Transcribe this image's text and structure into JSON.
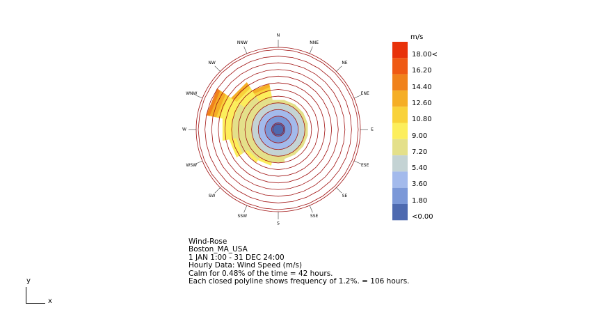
{
  "chart_data": {
    "type": "polar-bar",
    "title": "Wind-Rose",
    "location": "Boston_MA_USA",
    "period": "1 JAN 1:00 - 31 DEC 24:00",
    "data_label": "Hourly Data: Wind Speed (m/s)",
    "calm_text": "Calm for 0.48% of the time = 42 hours.",
    "frequency_text": "Each closed polyline shows frequency of 1.2%. = 106 hours.",
    "directions": [
      "N",
      "NNE",
      "NE",
      "ENE",
      "E",
      "ESE",
      "SE",
      "SSE",
      "S",
      "SSW",
      "SW",
      "WSW",
      "W",
      "WNW",
      "NW",
      "NNW"
    ],
    "rings": 12,
    "legend": {
      "unit": "m/s",
      "labels": [
        "18.00<",
        "16.20",
        "14.40",
        "12.60",
        "10.80",
        "9.00",
        "7.20",
        "5.40",
        "3.60",
        "1.80",
        "<0.00"
      ],
      "colors": [
        "#e8320a",
        "#ef5a14",
        "#f0821c",
        "#f5ae26",
        "#f9d23a",
        "#fcee5c",
        "#e4e08a",
        "#c4d3d4",
        "#a3baec",
        "#7b98d8",
        "#4e6ab0"
      ]
    },
    "series": [
      {
        "bin": "<0.00",
        "values": [
          1,
          1,
          1,
          1,
          1,
          1,
          1,
          1,
          1,
          1,
          1,
          1,
          1,
          1,
          1,
          1
        ]
      },
      {
        "bin": "1.80",
        "values": [
          1,
          1,
          1,
          1,
          1,
          1,
          1,
          1,
          1,
          1,
          1,
          1,
          1,
          1,
          1,
          1
        ]
      },
      {
        "bin": "3.60",
        "values": [
          1,
          1,
          1,
          1,
          1,
          1,
          1,
          1,
          1,
          1,
          1,
          1,
          1,
          1,
          1,
          1
        ]
      },
      {
        "bin": "5.40",
        "values": [
          1,
          1,
          1,
          1,
          1,
          1,
          1,
          1,
          1,
          1,
          1,
          1,
          1,
          1,
          1,
          1
        ]
      },
      {
        "bin": "7.20",
        "values": [
          0.5,
          0.5,
          0.5,
          0.5,
          0.5,
          0.5,
          0.5,
          0.5,
          1,
          1,
          1.5,
          2.5,
          3,
          3,
          2,
          1
        ]
      },
      {
        "bin": "9.00",
        "values": [
          0,
          0,
          0,
          0,
          0,
          0,
          0,
          0,
          0,
          0.5,
          0.5,
          1,
          1.5,
          2,
          1.5,
          1
        ]
      },
      {
        "bin": "10.80",
        "values": [
          0,
          0,
          0,
          0,
          0,
          0,
          0,
          0,
          0,
          0,
          0,
          0,
          0,
          0.5,
          0.5,
          0.5
        ]
      },
      {
        "bin": "12.60",
        "values": [
          0,
          0,
          0,
          0,
          0,
          0,
          0,
          0,
          0,
          0,
          0,
          0,
          0,
          1,
          0.5,
          0.5
        ]
      },
      {
        "bin": "14.40",
        "values": [
          0,
          0,
          0,
          0,
          0,
          0,
          0,
          0,
          0,
          0,
          0,
          0,
          0,
          0.5,
          0,
          0
        ]
      }
    ],
    "grey_overlay_directions": [
      "NE",
      "ENE",
      "E",
      "ESE",
      "SE"
    ]
  },
  "axes": {
    "y": "y",
    "x": "x"
  }
}
